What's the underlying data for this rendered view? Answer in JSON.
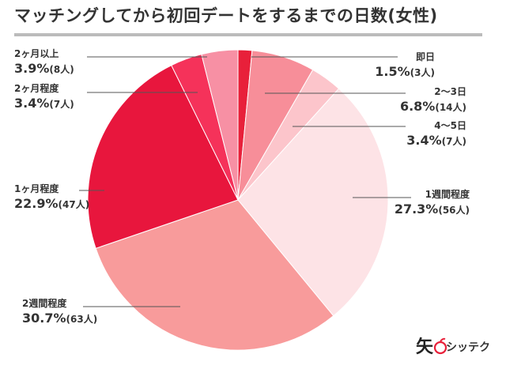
{
  "title": "マッチングしてから初回デートをするまでの日数(女性)",
  "brand": {
    "text": "シッテク",
    "logo_char": "矢",
    "icon": "apple-icon",
    "icon_color": "#e8203a"
  },
  "chart_data": {
    "type": "pie",
    "title": "マッチングしてから初回デートをするまでの日数(女性)",
    "start_angle_deg": 0,
    "direction": "clockwise",
    "slices": [
      {
        "label": "即日",
        "percent": 1.5,
        "percent_text": "1.5%",
        "count_text": "(3人)",
        "color": "#e8203a"
      },
      {
        "label": "2〜3日",
        "percent": 6.8,
        "percent_text": "6.8%",
        "count_text": "(14人)",
        "color": "#f78e99"
      },
      {
        "label": "4〜5日",
        "percent": 3.4,
        "percent_text": "3.4%",
        "count_text": "(7人)",
        "color": "#fcc5cb"
      },
      {
        "label": "1週間程度",
        "percent": 27.3,
        "percent_text": "27.3%",
        "count_text": "(56人)",
        "color": "#fde3e6"
      },
      {
        "label": "2週間程度",
        "percent": 30.7,
        "percent_text": "30.7%",
        "count_text": "(63人)",
        "color": "#f89b9b"
      },
      {
        "label": "1ヶ月程度",
        "percent": 22.9,
        "percent_text": "22.9%",
        "count_text": "(47人)",
        "color": "#e8163d"
      },
      {
        "label": "2ヶ月程度",
        "percent": 3.4,
        "percent_text": "3.4%",
        "count_text": "(7人)",
        "color": "#f5325a"
      },
      {
        "label": "2ヶ月以上",
        "percent": 3.9,
        "percent_text": "3.9%",
        "count_text": "(8人)",
        "color": "#f790a4"
      }
    ]
  }
}
